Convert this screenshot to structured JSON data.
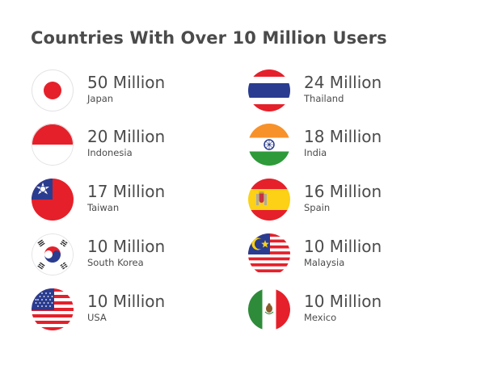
{
  "title": "Countries With Over 10 Million Users",
  "entries": [
    {
      "value": "50 Million",
      "country": "Japan",
      "flag": "japan-flag-icon"
    },
    {
      "value": "24 Million",
      "country": "Thailand",
      "flag": "thailand-flag-icon"
    },
    {
      "value": "20 Million",
      "country": "Indonesia",
      "flag": "indonesia-flag-icon"
    },
    {
      "value": "18 Million",
      "country": "India",
      "flag": "india-flag-icon"
    },
    {
      "value": "17 Million",
      "country": "Taiwan",
      "flag": "taiwan-flag-icon"
    },
    {
      "value": "16 Million",
      "country": "Spain",
      "flag": "spain-flag-icon"
    },
    {
      "value": "10 Million",
      "country": "South Korea",
      "flag": "south-korea-flag-icon"
    },
    {
      "value": "10 Million",
      "country": "Malaysia",
      "flag": "malaysia-flag-icon"
    },
    {
      "value": "10 Million",
      "country": "USA",
      "flag": "usa-flag-icon"
    },
    {
      "value": "10 Million",
      "country": "Mexico",
      "flag": "mexico-flag-icon"
    }
  ],
  "colors": {
    "text": "#4b4b4b",
    "red": "#e5202a",
    "blue": "#2a3c8f",
    "background": "#ffffff"
  }
}
